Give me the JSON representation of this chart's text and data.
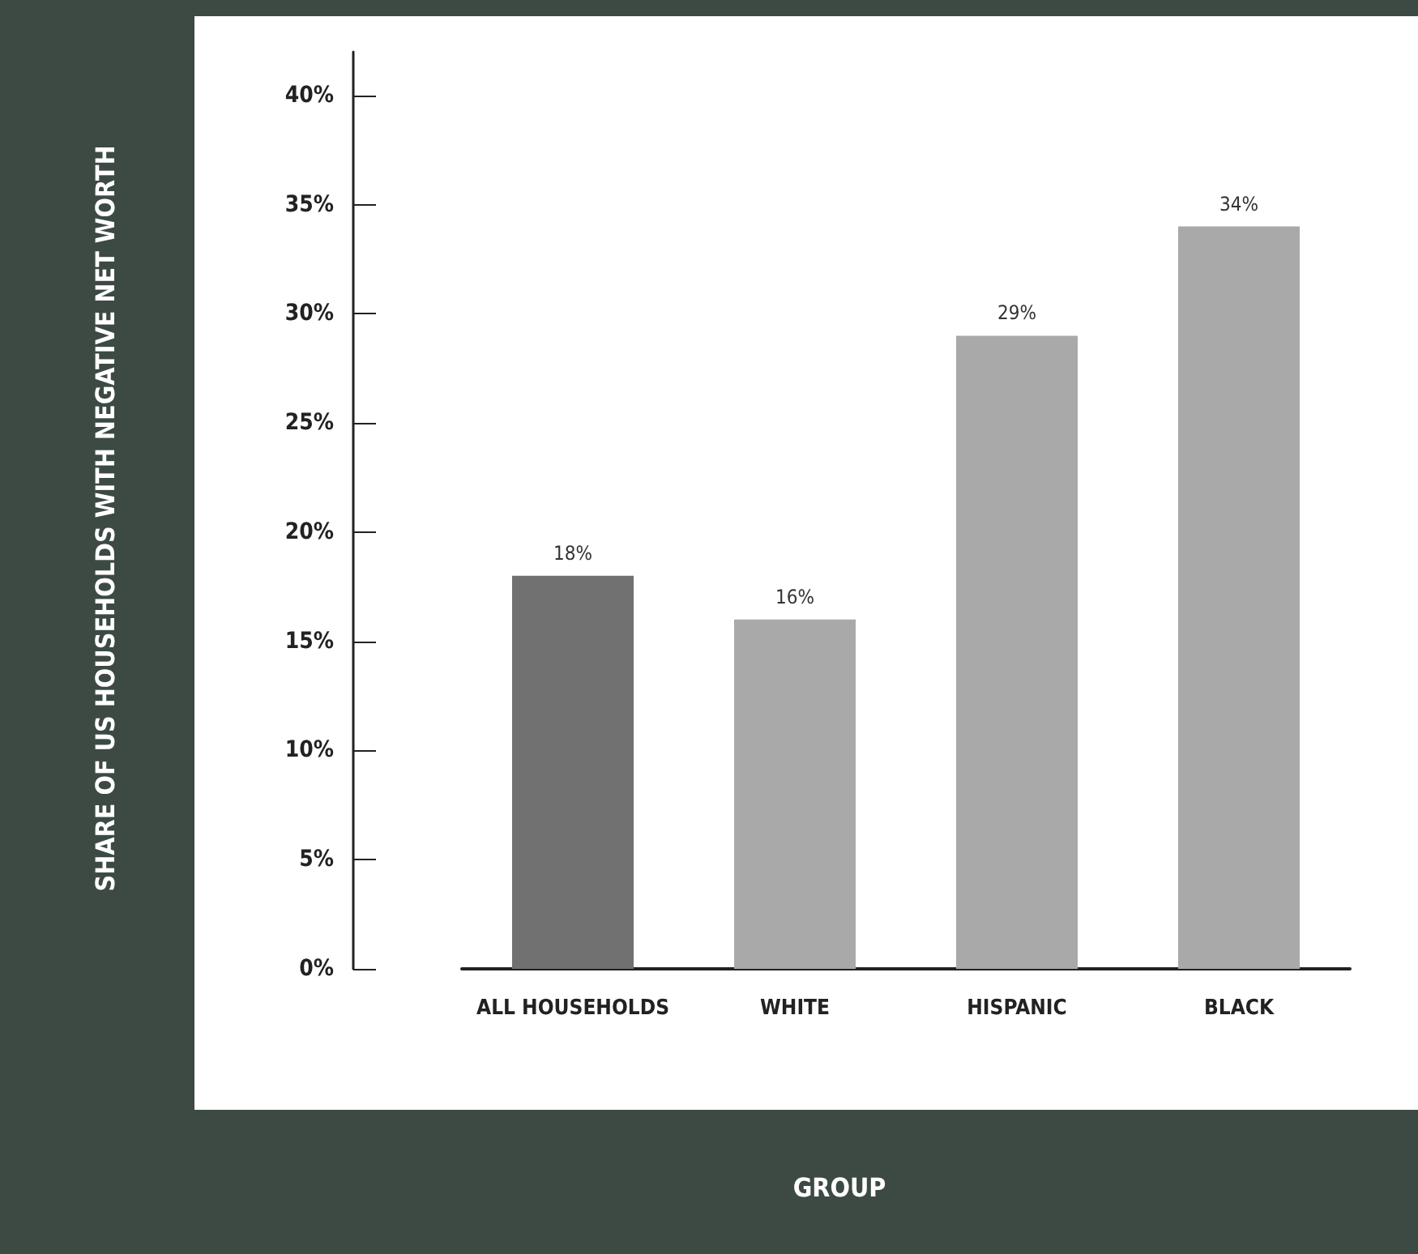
{
  "chart_data": {
    "type": "bar",
    "annotations": [
      "GROUP",
      "SHARE OF US HOUSEHOLDS WITH NEGATIVE NET WORTH"
    ],
    "categories": [
      "ALL HOUSEHOLDS",
      "WHITE",
      "HISPANIC",
      "BLACK"
    ],
    "values": [
      18,
      16,
      29,
      34
    ],
    "colors": [
      "#717171",
      "#a9a9a9",
      "#a9a9a9",
      "#a9a9a9"
    ],
    "value_labels": [
      "18%",
      "16%",
      "29%",
      "34%"
    ],
    "ylim": [
      0,
      42
    ],
    "yticks": [
      {
        "value": 0,
        "label": "0%"
      },
      {
        "value": 5,
        "label": "5%"
      },
      {
        "value": 10,
        "label": "10%"
      },
      {
        "value": 15,
        "label": "15%"
      },
      {
        "value": 20,
        "label": "20%"
      },
      {
        "value": 25,
        "label": "25%"
      },
      {
        "value": 30,
        "label": "30%"
      },
      {
        "value": 35,
        "label": "35%"
      },
      {
        "value": 40,
        "label": "40%"
      }
    ],
    "grid": false
  }
}
